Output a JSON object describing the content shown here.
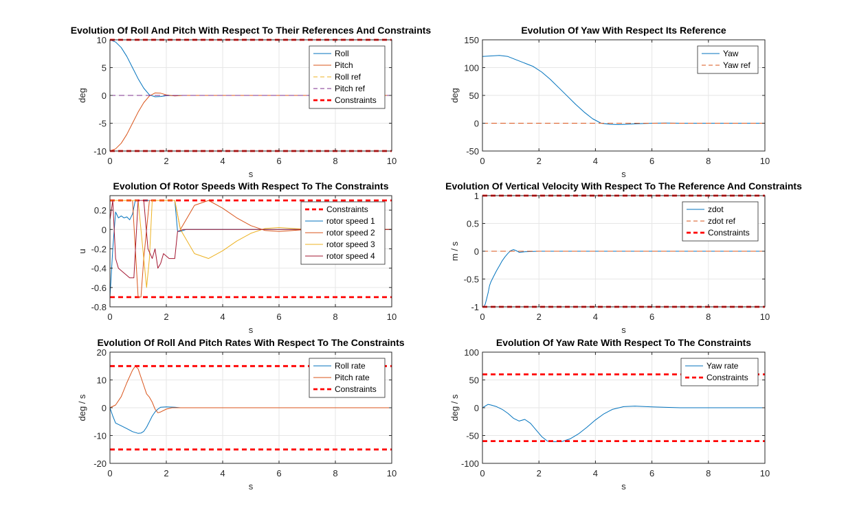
{
  "colors": {
    "blue": "#0072BD",
    "orange": "#D95319",
    "yellow": "#EDB120",
    "purple": "#7E2F8E",
    "darkred": "#A2142F",
    "constraint_red": "#FF0000",
    "grid": "#E6E6E6",
    "axis": "#262626"
  },
  "chart_data": [
    {
      "type": "line",
      "title": "Evolution Of Roll And Pitch With Respect To Their References And Constraints",
      "xlabel": "s",
      "ylabel": "deg",
      "xlim": [
        0,
        10
      ],
      "ylim": [
        -10,
        10
      ],
      "xticks": [
        0,
        2,
        4,
        6,
        8,
        10
      ],
      "yticks": [
        -10,
        -5,
        0,
        5,
        10
      ],
      "grid": true,
      "legend_position": "top-right",
      "series": [
        {
          "name": "Roll",
          "color": "blue",
          "style": "solid",
          "x": [
            0,
            0.2,
            0.4,
            0.6,
            0.8,
            1.0,
            1.2,
            1.4,
            1.6,
            1.8,
            2.0,
            2.5,
            3,
            10
          ],
          "y": [
            10,
            9.6,
            8.6,
            7.0,
            5.0,
            3.0,
            1.3,
            0.1,
            -0.25,
            -0.2,
            -0.05,
            0,
            0,
            0
          ]
        },
        {
          "name": "Pitch",
          "color": "orange",
          "style": "solid",
          "x": [
            0,
            0.2,
            0.4,
            0.6,
            0.8,
            1.0,
            1.2,
            1.4,
            1.6,
            1.8,
            2.0,
            2.3,
            2.6,
            3,
            10
          ],
          "y": [
            -10,
            -9.6,
            -8.6,
            -7.0,
            -5.0,
            -3.0,
            -1.3,
            -0.1,
            0.45,
            0.4,
            0.1,
            -0.1,
            0,
            0,
            0
          ]
        },
        {
          "name": "Roll ref",
          "color": "yellow",
          "style": "dashed",
          "x": [
            0,
            10
          ],
          "y": [
            0,
            0
          ]
        },
        {
          "name": "Pitch ref",
          "color": "purple",
          "style": "dashed",
          "x": [
            0,
            10
          ],
          "y": [
            0,
            0
          ]
        },
        {
          "name": "Constraints",
          "color": "constraint_red",
          "style": "thick-dashed",
          "x": [
            0,
            10
          ],
          "y": [
            10,
            10
          ]
        },
        {
          "name": "",
          "color": "constraint_red",
          "style": "thick-dashed",
          "x": [
            0,
            10
          ],
          "y": [
            -10,
            -10
          ]
        }
      ]
    },
    {
      "type": "line",
      "title": "Evolution Of Yaw With Respect Its Reference",
      "xlabel": "s",
      "ylabel": "deg",
      "xlim": [
        0,
        10
      ],
      "ylim": [
        -50,
        150
      ],
      "xticks": [
        0,
        2,
        4,
        6,
        8,
        10
      ],
      "yticks": [
        -50,
        0,
        50,
        100,
        150
      ],
      "grid": true,
      "legend_position": "top-right",
      "series": [
        {
          "name": "Yaw",
          "color": "blue",
          "style": "solid",
          "x": [
            0,
            0.3,
            0.6,
            0.9,
            1.2,
            1.5,
            1.8,
            2.1,
            2.4,
            2.7,
            3.0,
            3.3,
            3.6,
            3.9,
            4.2,
            4.5,
            4.8,
            5.1,
            5.5,
            6.0,
            6.5,
            7,
            10
          ],
          "y": [
            120,
            121,
            122,
            120,
            114,
            108,
            102,
            92,
            79,
            64,
            49,
            34,
            20,
            8,
            0,
            -2,
            -2.5,
            -2,
            -1,
            0,
            0.3,
            0,
            0
          ]
        },
        {
          "name": "Yaw ref",
          "color": "orange",
          "style": "dashed",
          "x": [
            0,
            10
          ],
          "y": [
            0,
            0
          ]
        }
      ]
    },
    {
      "type": "line",
      "title": "Evolution Of Rotor Speeds With Respect To The Constraints",
      "xlabel": "s",
      "ylabel": "u",
      "xlim": [
        0,
        10
      ],
      "ylim": [
        -0.8,
        0.35
      ],
      "xticks": [
        0,
        2,
        4,
        6,
        8,
        10
      ],
      "yticks": [
        -0.8,
        -0.6,
        -0.4,
        -0.2,
        0,
        0.2
      ],
      "grid": true,
      "legend_position": "top-right",
      "series": [
        {
          "name": "Constraints",
          "color": "constraint_red",
          "style": "thick-dashed",
          "x": [
            0,
            10
          ],
          "y": [
            0.3,
            0.3
          ]
        },
        {
          "name": "",
          "color": "constraint_red",
          "style": "thick-dashed",
          "x": [
            0,
            10
          ],
          "y": [
            -0.7,
            -0.7
          ]
        },
        {
          "name": "rotor speed 1",
          "color": "blue",
          "style": "solid",
          "x": [
            0,
            0.1,
            0.2,
            0.3,
            0.4,
            0.5,
            0.6,
            0.7,
            0.8,
            0.9,
            1.0,
            1.2,
            1.5,
            1.8,
            2.1,
            2.3,
            2.4,
            2.5,
            2.7,
            3,
            10
          ],
          "y": [
            -0.7,
            -0.2,
            0.18,
            0.12,
            0.14,
            0.12,
            0.13,
            0.1,
            0.16,
            0.3,
            0.3,
            0.3,
            0.3,
            0.3,
            0.3,
            0.3,
            -0.02,
            -0.02,
            0,
            0,
            0
          ]
        },
        {
          "name": "rotor speed 2",
          "color": "orange",
          "style": "solid",
          "x": [
            0,
            0.1,
            0.2,
            0.3,
            0.6,
            0.8,
            0.9,
            1.0,
            1.1,
            1.2,
            1.4,
            1.7,
            2.0,
            2.3,
            2.5,
            2.7,
            3.0,
            3.5,
            4.0,
            4.5,
            5.0,
            5.5,
            6.0,
            6.5,
            7.0,
            7.5,
            10
          ],
          "y": [
            0.3,
            0.3,
            0.3,
            0.3,
            0.3,
            0.3,
            -0.2,
            -0.7,
            -0.7,
            -0.3,
            0.3,
            0.3,
            0.3,
            0.3,
            0,
            0.1,
            0.25,
            0.3,
            0.22,
            0.12,
            0.04,
            -0.01,
            -0.02,
            -0.01,
            0,
            0,
            0
          ]
        },
        {
          "name": "rotor speed 3",
          "color": "yellow",
          "style": "solid",
          "x": [
            0,
            0.2,
            0.5,
            0.8,
            1.0,
            1.2,
            1.3,
            1.4,
            1.5,
            1.7,
            2.0,
            2.3,
            2.5,
            2.7,
            3.0,
            3.5,
            4.0,
            4.5,
            5.0,
            5.5,
            6.0,
            6.5,
            7.0,
            7.5,
            10
          ],
          "y": [
            0.3,
            0.3,
            0.3,
            0.3,
            0.3,
            -0.3,
            -0.6,
            -0.3,
            0.3,
            0.3,
            0.3,
            0.3,
            0,
            -0.1,
            -0.25,
            -0.3,
            -0.22,
            -0.12,
            -0.04,
            0.01,
            0.02,
            0.01,
            0,
            0,
            0
          ]
        },
        {
          "name": "rotor speed 4",
          "color": "darkred",
          "style": "solid",
          "x": [
            0,
            0.1,
            0.2,
            0.3,
            0.5,
            0.7,
            0.85,
            1.0,
            1.1,
            1.2,
            1.35,
            1.5,
            1.6,
            1.7,
            1.8,
            1.9,
            2.1,
            2.3,
            2.4,
            2.6,
            2.8,
            10
          ],
          "y": [
            0.1,
            0.3,
            -0.3,
            -0.4,
            -0.45,
            -0.5,
            -0.5,
            0.3,
            0.3,
            0.3,
            -0.2,
            -0.3,
            -0.2,
            -0.4,
            -0.35,
            -0.25,
            -0.3,
            -0.3,
            -0.02,
            0,
            0,
            0
          ]
        }
      ]
    },
    {
      "type": "line",
      "title": "Evolution Of Vertical Velocity With Respect To The Reference And Constraints",
      "xlabel": "s",
      "ylabel": "m / s",
      "xlim": [
        0,
        10
      ],
      "ylim": [
        -1,
        1
      ],
      "xticks": [
        0,
        2,
        4,
        6,
        8,
        10
      ],
      "yticks": [
        -1,
        -0.5,
        0,
        0.5,
        1
      ],
      "grid": true,
      "legend_position": "top-right",
      "series": [
        {
          "name": "zdot",
          "color": "blue",
          "style": "solid",
          "x": [
            0,
            0.05,
            0.1,
            0.15,
            0.2,
            0.25,
            0.3,
            0.4,
            0.5,
            0.6,
            0.7,
            0.8,
            0.9,
            1.0,
            1.1,
            1.2,
            1.3,
            1.5,
            2,
            10
          ],
          "y": [
            -1,
            -1,
            -0.95,
            -0.85,
            -0.75,
            -0.62,
            -0.55,
            -0.45,
            -0.35,
            -0.26,
            -0.17,
            -0.1,
            -0.04,
            0.01,
            0.03,
            0.01,
            -0.02,
            -0.01,
            0,
            0
          ]
        },
        {
          "name": "zdot ref",
          "color": "orange",
          "style": "dashed",
          "x": [
            0,
            10
          ],
          "y": [
            0,
            0
          ]
        },
        {
          "name": "Constraints",
          "color": "constraint_red",
          "style": "thick-dashed",
          "x": [
            0,
            10
          ],
          "y": [
            1,
            1
          ]
        },
        {
          "name": "",
          "color": "constraint_red",
          "style": "thick-dashed",
          "x": [
            0,
            10
          ],
          "y": [
            -1,
            -1
          ]
        }
      ]
    },
    {
      "type": "line",
      "title": "Evolution Of Roll And Pitch Rates With Respect To The Constraints",
      "xlabel": "s",
      "ylabel": "deg / s",
      "xlim": [
        0,
        10
      ],
      "ylim": [
        -20,
        20
      ],
      "xticks": [
        0,
        2,
        4,
        6,
        8,
        10
      ],
      "yticks": [
        -20,
        -10,
        0,
        10,
        20
      ],
      "grid": true,
      "legend_position": "top-right",
      "series": [
        {
          "name": "Roll rate",
          "color": "blue",
          "style": "solid",
          "x": [
            0,
            0.1,
            0.2,
            0.4,
            0.6,
            0.8,
            1.0,
            1.1,
            1.2,
            1.3,
            1.4,
            1.5,
            1.6,
            1.7,
            1.8,
            2.0,
            2.3,
            2.5,
            3,
            10
          ],
          "y": [
            0,
            -3,
            -5.5,
            -6.5,
            -7.5,
            -8.6,
            -9.2,
            -9.1,
            -8.5,
            -7,
            -5,
            -3,
            -1.5,
            -0.5,
            0.2,
            0.3,
            0.2,
            0,
            0,
            0
          ]
        },
        {
          "name": "Pitch rate",
          "color": "orange",
          "style": "solid",
          "x": [
            0,
            0.2,
            0.4,
            0.6,
            0.8,
            0.9,
            1.0,
            1.1,
            1.2,
            1.3,
            1.4,
            1.5,
            1.6,
            1.7,
            1.8,
            2.0,
            2.2,
            2.5,
            3,
            10
          ],
          "y": [
            0,
            1,
            4,
            9,
            13.5,
            15,
            14,
            11,
            8,
            5,
            3.8,
            2,
            -0.5,
            -1.8,
            -1.5,
            -0.5,
            0,
            0,
            0,
            0
          ]
        },
        {
          "name": "Constraints",
          "color": "constraint_red",
          "style": "thick-dashed",
          "x": [
            0,
            10
          ],
          "y": [
            15,
            15
          ]
        },
        {
          "name": "",
          "color": "constraint_red",
          "style": "thick-dashed",
          "x": [
            0,
            10
          ],
          "y": [
            -15,
            -15
          ]
        }
      ]
    },
    {
      "type": "line",
      "title": "Evolution Of Yaw Rate With Respect To The Constraints",
      "xlabel": "s",
      "ylabel": "deg / s",
      "xlim": [
        0,
        10
      ],
      "ylim": [
        -100,
        100
      ],
      "xticks": [
        0,
        2,
        4,
        6,
        8,
        10
      ],
      "yticks": [
        -100,
        -50,
        0,
        50,
        100
      ],
      "grid": true,
      "legend_position": "top-right",
      "series": [
        {
          "name": "Yaw rate",
          "color": "blue",
          "style": "solid",
          "x": [
            0,
            0.1,
            0.2,
            0.3,
            0.5,
            0.7,
            0.9,
            1.1,
            1.3,
            1.5,
            1.7,
            1.9,
            2.1,
            2.3,
            2.5,
            2.8,
            3.1,
            3.4,
            3.7,
            4.0,
            4.3,
            4.6,
            5.0,
            5.4,
            6.0,
            7.0,
            10
          ],
          "y": [
            0,
            3,
            6,
            5,
            2,
            -3,
            -10,
            -19,
            -24,
            -21,
            -28,
            -40,
            -52,
            -60,
            -61,
            -61,
            -56,
            -47,
            -35,
            -22,
            -11,
            -3,
            2,
            3,
            1.5,
            0,
            0
          ]
        },
        {
          "name": "Constraints",
          "color": "constraint_red",
          "style": "thick-dashed",
          "x": [
            0,
            10
          ],
          "y": [
            60,
            60
          ]
        },
        {
          "name": "",
          "color": "constraint_red",
          "style": "thick-dashed",
          "x": [
            0,
            10
          ],
          "y": [
            -60,
            -60
          ]
        }
      ]
    }
  ]
}
